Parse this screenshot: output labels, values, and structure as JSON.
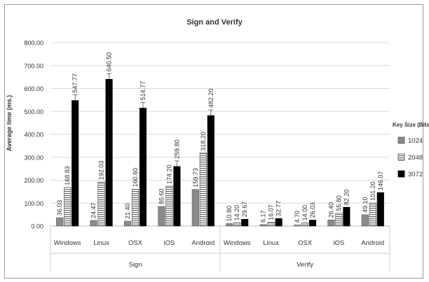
{
  "chart_data": {
    "type": "bar",
    "title": "Sign and Verify",
    "ylabel": "Average time (ms.)",
    "xlabel": "",
    "ylim": [
      0,
      800
    ],
    "yticks": [
      "0.00",
      "100.00",
      "200.00",
      "300.00",
      "400.00",
      "500.00",
      "600.00",
      "700.00",
      "800.00"
    ],
    "grid": true,
    "legend": {
      "title": "Key Size (Bits)",
      "placement": "right",
      "entries": [
        "1024",
        "2048",
        "3072"
      ]
    },
    "groups": [
      {
        "name": "Sign",
        "categories": [
          "Windows",
          "Linux",
          "OSX",
          "iOS",
          "Android"
        ],
        "series": [
          {
            "name": "1024",
            "values": [
              36.03,
              24.47,
              21.4,
              85.6,
              159.73
            ],
            "labels": [
              "36.03",
              "24.47",
              "21.40",
              "85.60",
              "159.73"
            ]
          },
          {
            "name": "2048",
            "values": [
              168.83,
              192.03,
              160.6,
              174.2,
              318.2
            ],
            "labels": [
              "168.83",
              "192.03",
              "160.60",
              "174.20",
              "318.20"
            ]
          },
          {
            "name": "3072",
            "values": [
              547.77,
              640.5,
              514.77,
              259.8,
              482.2
            ],
            "labels": [
              "547.77",
              "640.50",
              "514.77",
              "259.80",
              "482.20"
            ]
          }
        ]
      },
      {
        "name": "Verify",
        "categories": [
          "Windows",
          "Linux",
          "OSX",
          "iOS",
          "Android"
        ],
        "series": [
          {
            "name": "1024",
            "values": [
              10.8,
              6.17,
              4.7,
              26.4,
              49.1
            ],
            "labels": [
              "10.80",
              "6.17",
              "4.70",
              "26.40",
              "49.10"
            ]
          },
          {
            "name": "2048",
            "values": [
              14.2,
              16.07,
              14.0,
              55.8,
              101.2
            ],
            "labels": [
              "14.20",
              "16.07",
              "14.00",
              "55.80",
              "101.20"
            ]
          },
          {
            "name": "3072",
            "values": [
              29.67,
              32.77,
              26.03,
              82.2,
              146.07
            ],
            "labels": [
              "29.67",
              "32.77",
              "26.03",
              "82.20",
              "146.07"
            ]
          }
        ]
      }
    ],
    "error_bars": "on 3072-bit Sign bars"
  }
}
